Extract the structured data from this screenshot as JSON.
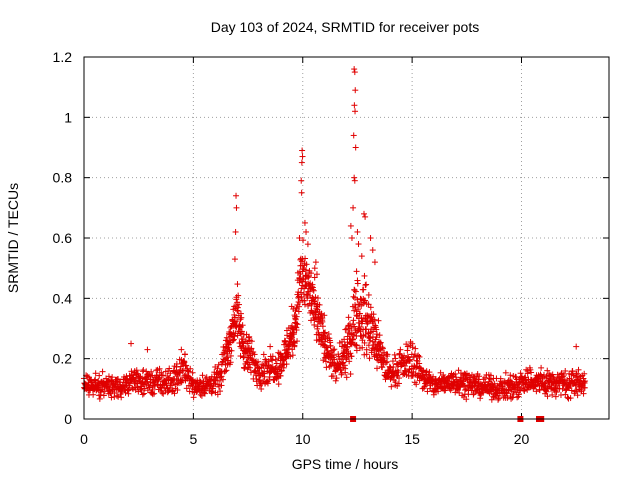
{
  "chart_data": {
    "type": "scatter",
    "title": "Day 103 of 2024, SRMTID for receiver pots",
    "xlabel": "GPS time / hours",
    "ylabel": "SRMTID / TECUs",
    "xlim": [
      0,
      24
    ],
    "ylim": [
      0,
      1.2
    ],
    "xticks": [
      0,
      5,
      10,
      15,
      20
    ],
    "xtick_labels": [
      "0",
      "5",
      "10",
      "15",
      "20"
    ],
    "yticks": [
      0,
      0.2,
      0.4,
      0.6,
      0.8,
      1.0,
      1.2
    ],
    "ytick_labels": [
      "0",
      "0.2",
      "0.4",
      "0.6",
      "0.8",
      "1",
      "1.2"
    ],
    "grid": true,
    "marker": "plus",
    "color": "#e00000",
    "sample_interval_hours": 0.025,
    "envelope": {
      "x": [
        0,
        1,
        2,
        2.3,
        3,
        4,
        4.6,
        5,
        5.6,
        6.2,
        6.6,
        6.85,
        6.95,
        7.1,
        7.4,
        8,
        9,
        9.6,
        9.9,
        10.0,
        10.3,
        10.6,
        11,
        11.5,
        12,
        12.3,
        12.4,
        12.6,
        12.8,
        13.1,
        13.6,
        14,
        14.6,
        15.0,
        15.5,
        16,
        17,
        18,
        19,
        19.8,
        20.2,
        21,
        22,
        22.9
      ],
      "mean": [
        0.11,
        0.11,
        0.11,
        0.13,
        0.12,
        0.12,
        0.17,
        0.11,
        0.11,
        0.13,
        0.24,
        0.32,
        0.36,
        0.3,
        0.22,
        0.16,
        0.18,
        0.3,
        0.45,
        0.48,
        0.42,
        0.34,
        0.26,
        0.16,
        0.22,
        0.3,
        0.4,
        0.32,
        0.35,
        0.3,
        0.2,
        0.15,
        0.18,
        0.2,
        0.14,
        0.11,
        0.13,
        0.11,
        0.1,
        0.11,
        0.13,
        0.12,
        0.12,
        0.12
      ],
      "spread": [
        0.04,
        0.04,
        0.04,
        0.05,
        0.05,
        0.05,
        0.06,
        0.04,
        0.04,
        0.05,
        0.08,
        0.1,
        0.12,
        0.1,
        0.08,
        0.06,
        0.06,
        0.1,
        0.12,
        0.14,
        0.12,
        0.1,
        0.08,
        0.06,
        0.08,
        0.12,
        0.18,
        0.14,
        0.14,
        0.12,
        0.08,
        0.05,
        0.06,
        0.08,
        0.05,
        0.04,
        0.05,
        0.04,
        0.04,
        0.05,
        0.05,
        0.05,
        0.05,
        0.05
      ]
    },
    "peaks": [
      {
        "x": 6.95,
        "y": 0.74
      },
      {
        "x": 6.97,
        "y": 0.7
      },
      {
        "x": 6.93,
        "y": 0.62
      },
      {
        "x": 6.9,
        "y": 0.53
      },
      {
        "x": 9.97,
        "y": 0.89
      },
      {
        "x": 9.99,
        "y": 0.87
      },
      {
        "x": 9.96,
        "y": 0.85
      },
      {
        "x": 9.93,
        "y": 0.79
      },
      {
        "x": 9.95,
        "y": 0.75
      },
      {
        "x": 10.1,
        "y": 0.65
      },
      {
        "x": 10.15,
        "y": 0.62
      },
      {
        "x": 9.85,
        "y": 0.6
      },
      {
        "x": 10.6,
        "y": 0.52
      },
      {
        "x": 10.55,
        "y": 0.5
      },
      {
        "x": 10.65,
        "y": 0.48
      },
      {
        "x": 12.35,
        "y": 1.16
      },
      {
        "x": 12.38,
        "y": 1.15
      },
      {
        "x": 12.4,
        "y": 1.09
      },
      {
        "x": 12.36,
        "y": 1.04
      },
      {
        "x": 12.39,
        "y": 1.02
      },
      {
        "x": 12.33,
        "y": 0.94
      },
      {
        "x": 12.42,
        "y": 0.9
      },
      {
        "x": 12.35,
        "y": 0.8
      },
      {
        "x": 12.38,
        "y": 0.79
      },
      {
        "x": 12.3,
        "y": 0.7
      },
      {
        "x": 12.2,
        "y": 0.64
      },
      {
        "x": 12.25,
        "y": 0.6
      },
      {
        "x": 12.5,
        "y": 0.62
      },
      {
        "x": 12.55,
        "y": 0.58
      },
      {
        "x": 12.8,
        "y": 0.68
      },
      {
        "x": 12.85,
        "y": 0.67
      },
      {
        "x": 13.1,
        "y": 0.6
      },
      {
        "x": 13.2,
        "y": 0.56
      },
      {
        "x": 13.3,
        "y": 0.52
      },
      {
        "x": 12.7,
        "y": 0.54
      },
      {
        "x": 2.15,
        "y": 0.25
      },
      {
        "x": 2.9,
        "y": 0.23
      },
      {
        "x": 4.45,
        "y": 0.23
      },
      {
        "x": 22.5,
        "y": 0.24
      }
    ],
    "zero_markers_x": [
      12.3,
      19.95,
      20.8,
      20.9
    ]
  }
}
